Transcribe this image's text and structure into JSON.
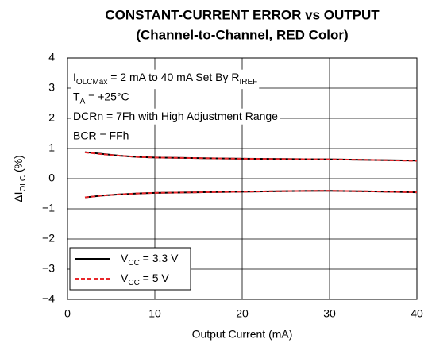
{
  "chart_data": {
    "type": "line",
    "title": [
      "CONSTANT-CURRENT ERROR vs OUTPUT",
      "(Channel-to-Channel, RED Color)"
    ],
    "x_label": "Output Current (mA)",
    "y_label": [
      {
        "text": "ΔI"
      },
      {
        "text": "OLC",
        "sub": true
      },
      {
        "text": " (%)"
      }
    ],
    "annotations": [
      [
        {
          "text": "I"
        },
        {
          "text": "OLCMax",
          "sub": true
        },
        {
          "text": " = 2 mA to 40 mA Set By R"
        },
        {
          "text": "IREF",
          "sub": true
        }
      ],
      [
        {
          "text": "T"
        },
        {
          "text": "A",
          "sub": true
        },
        {
          "text": " = +25°C"
        }
      ],
      [
        {
          "text": "DCRn = 7Fh with High Adjustment Range"
        }
      ],
      [
        {
          "text": "BCR = FFh"
        }
      ]
    ],
    "x": [
      2,
      4,
      6,
      8,
      10,
      15,
      20,
      25,
      30,
      35,
      40
    ],
    "series": [
      {
        "name": [
          {
            "text": "V"
          },
          {
            "text": "CC",
            "sub": true
          },
          {
            "text": " = 3.3 V"
          }
        ],
        "color": "#000000",
        "dash": false,
        "values": [
          0.88,
          0.82,
          0.76,
          0.72,
          0.7,
          0.68,
          0.66,
          0.65,
          0.64,
          0.62,
          0.6
        ],
        "values_lower": [
          -0.62,
          -0.56,
          -0.52,
          -0.49,
          -0.47,
          -0.45,
          -0.43,
          -0.41,
          -0.4,
          -0.42,
          -0.45
        ]
      },
      {
        "name": [
          {
            "text": "V"
          },
          {
            "text": "CC",
            "sub": true
          },
          {
            "text": " = 5 V"
          }
        ],
        "color": "#e8262a",
        "dash": true,
        "values": [
          0.87,
          0.81,
          0.76,
          0.72,
          0.7,
          0.68,
          0.66,
          0.65,
          0.64,
          0.62,
          0.59
        ],
        "values_lower": [
          -0.62,
          -0.56,
          -0.52,
          -0.49,
          -0.47,
          -0.45,
          -0.43,
          -0.41,
          -0.4,
          -0.42,
          -0.45
        ]
      }
    ],
    "xlim": [
      0,
      40
    ],
    "xticks": [
      0,
      10,
      20,
      30,
      40
    ],
    "ylim": [
      -4,
      4
    ],
    "yticks": [
      {
        "value": -4,
        "label": "−4"
      },
      {
        "value": -3,
        "label": "−3"
      },
      {
        "value": -2,
        "label": "−2"
      },
      {
        "value": -1,
        "label": "−1"
      },
      0,
      1,
      2,
      3,
      4
    ],
    "grid": true,
    "legend": "lower left"
  }
}
